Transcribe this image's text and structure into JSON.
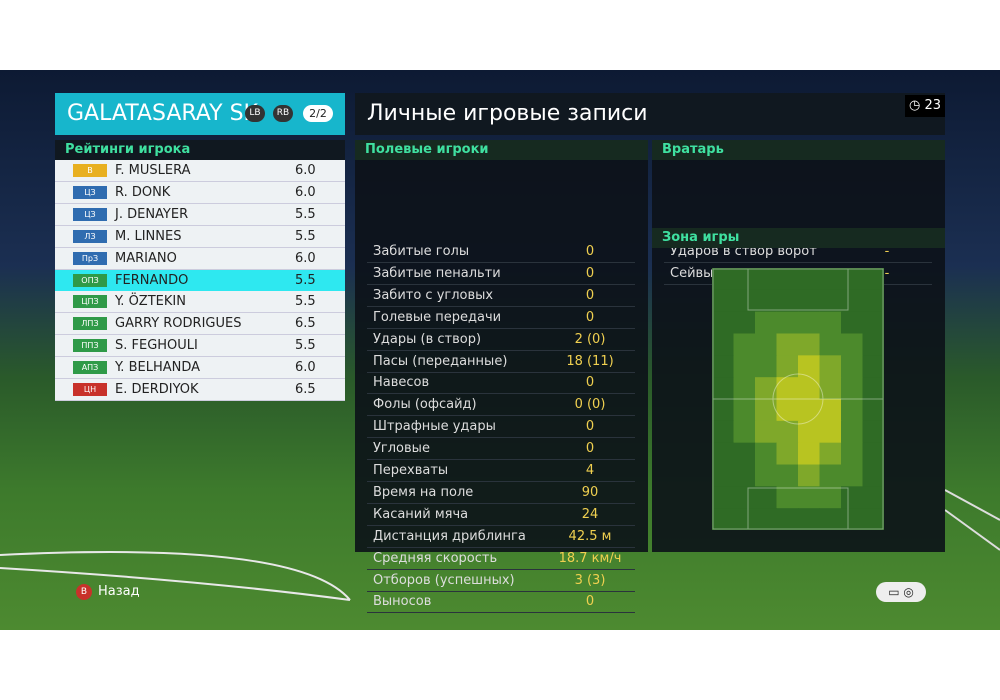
{
  "team": {
    "name": "GALATASARAY SK",
    "badges": [
      "LB",
      "RB"
    ],
    "page": "2/2"
  },
  "timer": "23",
  "player_ratings": {
    "header": "Рейтинги игрока",
    "rows": [
      [
        "В",
        "F. MUSLERA",
        "6.0"
      ],
      [
        "ЦЗ",
        "R. DONK",
        "6.0"
      ],
      [
        "ЦЗ",
        "J. DENAYER",
        "5.5"
      ],
      [
        "ЛЗ",
        "M. LINNES",
        "5.5"
      ],
      [
        "ПрЗ",
        "MARIANO",
        "6.0"
      ],
      [
        "ОПЗ",
        "FERNANDO",
        "5.5"
      ],
      [
        "ЦПЗ",
        "Y. ÖZTEKIN",
        "5.5"
      ],
      [
        "ЛПЗ",
        "GARRY RODRIGUES",
        "6.5"
      ],
      [
        "ППЗ",
        "S. FEGHOULI",
        "5.5"
      ],
      [
        "АПЗ",
        "Y. BELHANDA",
        "6.0"
      ],
      [
        "ЦН",
        "E. DERDIYOK",
        "6.5"
      ]
    ]
  },
  "records": {
    "title": "Личные игровые записи",
    "field_header": "Полевые игроки",
    "field_rows": [
      [
        "Забитые голы",
        "0"
      ],
      [
        "Забитые пенальти",
        "0"
      ],
      [
        "Забито с угловых",
        "0"
      ],
      [
        "Голевые передачи",
        "0"
      ],
      [
        "Удары (в створ)",
        "2 (0)"
      ],
      [
        "Пасы (переданные)",
        "18 (11)"
      ],
      [
        "Навесов",
        "0"
      ],
      [
        "Фолы (офсайд)",
        "0 (0)"
      ],
      [
        "Штрафные удары",
        "0"
      ],
      [
        "Угловые",
        "0"
      ],
      [
        "Перехваты",
        "4"
      ],
      [
        "Время на поле",
        "90"
      ],
      [
        "Касаний мяча",
        "24"
      ],
      [
        "Дистанция дриблинга",
        "42.5 м"
      ],
      [
        "Средняя скорость",
        "18.7 км/ч"
      ],
      [
        "Отборов (успешных)",
        "3 (3)"
      ],
      [
        "Выносов",
        "0"
      ]
    ],
    "keeper_header": "Вратарь",
    "keeper_rows": [
      [
        "Ударов в створ ворот",
        "-"
      ],
      [
        "Сейвы",
        "-"
      ]
    ],
    "zone_header": "Зона игры"
  },
  "footer": {
    "back_button": "B",
    "back_label": "Назад"
  }
}
